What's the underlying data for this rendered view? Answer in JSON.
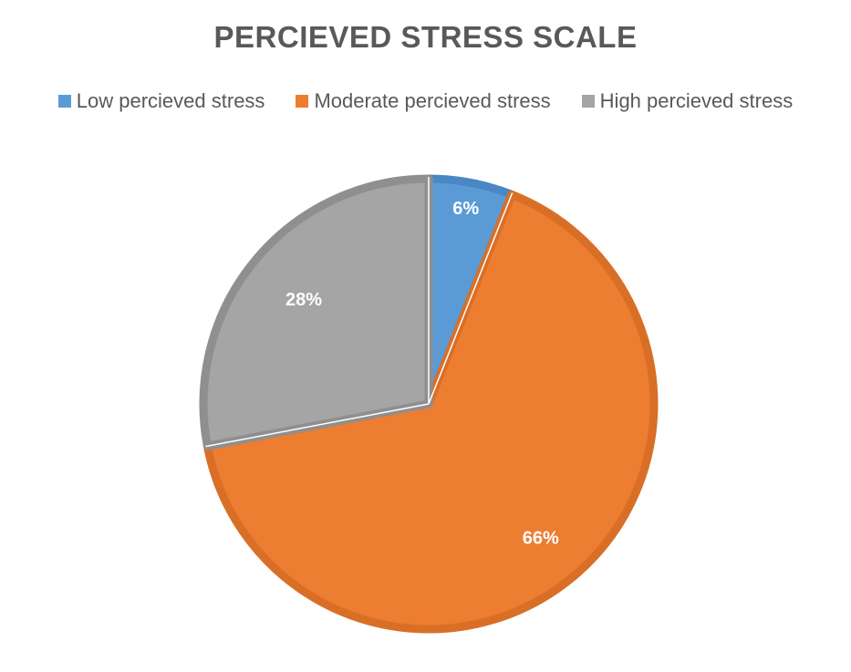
{
  "chart_data": {
    "type": "pie",
    "title": "PERCIEVED STRESS SCALE",
    "categories": [
      "Low percieved stress",
      "Moderate percieved stress",
      "High percieved stress"
    ],
    "values": [
      6,
      66,
      28
    ],
    "data_labels": [
      "6%",
      "66%",
      "28%"
    ],
    "colors": [
      "#5B9BD5",
      "#ED7D31",
      "#A5A5A5"
    ],
    "border_colors": [
      "#4A87C4",
      "#D96F26",
      "#8F8F8F"
    ],
    "legend_position": "top",
    "start_angle": "12 o'clock, clockwise"
  }
}
